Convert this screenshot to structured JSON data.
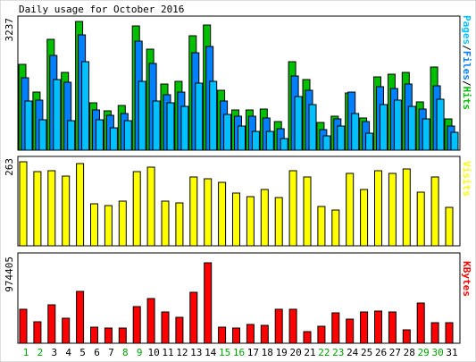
{
  "chart_data": {
    "type": "bar",
    "title": "Daily usage for October 2016",
    "categories": [
      "1",
      "2",
      "3",
      "4",
      "5",
      "6",
      "7",
      "8",
      "9",
      "10",
      "11",
      "12",
      "13",
      "14",
      "15",
      "16",
      "17",
      "18",
      "19",
      "20",
      "21",
      "22",
      "23",
      "24",
      "25",
      "26",
      "27",
      "28",
      "29",
      "30",
      "31"
    ],
    "weekend_days": [
      "1",
      "2",
      "8",
      "9",
      "15",
      "16",
      "22",
      "23",
      "29",
      "30"
    ],
    "colors": {
      "hits": "#00c000",
      "files": "#0080ff",
      "pages": "#00c0ff",
      "visits": "#ffff00",
      "kbytes": "#ff0000",
      "weekend_label": "#00a000",
      "weekday_label": "#000000",
      "frame": "#000000",
      "panel_bg": "#ffffff"
    },
    "panels": [
      {
        "id": "hits",
        "y_max_label": "3237",
        "right_label": [
          "Pages",
          "/",
          "Files",
          "/",
          "Hits"
        ],
        "right_label_colors": [
          "#00c0ff",
          "#000000",
          "#0080ff",
          "#000000",
          "#00c000"
        ],
        "ylim": [
          0,
          3237
        ],
        "series": [
          {
            "name": "Hits",
            "values": [
              2130,
              1450,
              2740,
              1930,
              3200,
              1180,
              980,
              1100,
              3080,
              2500,
              1650,
              1710,
              2830,
              3100,
              1480,
              990,
              1000,
              1030,
              700,
              2190,
              1750,
              680,
              840,
              1420,
              800,
              1820,
              1890,
              1920,
              1200,
              2070,
              770
            ]
          },
          {
            "name": "Files",
            "values": [
              1800,
              1250,
              2360,
              1690,
              2870,
              1000,
              870,
              900,
              2710,
              2160,
              1380,
              1440,
              2420,
              2580,
              1220,
              840,
              840,
              800,
              530,
              1830,
              1480,
              520,
              770,
              1450,
              710,
              1580,
              1530,
              1650,
              1030,
              1600,
              590
            ]
          },
          {
            "name": "Pages",
            "values": [
              1230,
              750,
              1750,
              740,
              2200,
              750,
              560,
              730,
              1700,
              1220,
              1180,
              1090,
              1660,
              1700,
              890,
              590,
              470,
              470,
              290,
              1340,
              1130,
              360,
              600,
              900,
              420,
              1130,
              1250,
              1090,
              770,
              1260,
              450
            ]
          }
        ]
      },
      {
        "id": "visits",
        "y_max_label": "263",
        "right_label": [
          "Visits"
        ],
        "right_label_colors": [
          "#ffff00"
        ],
        "ylim": [
          0,
          263
        ],
        "series": [
          {
            "name": "Visits",
            "values": [
              257,
              227,
              231,
              213,
              253,
              130,
              123,
              137,
              227,
              242,
              138,
              131,
              211,
              206,
              194,
              162,
              150,
              173,
              149,
              231,
              212,
              121,
              110,
              221,
              173,
              231,
              222,
              235,
              164,
              212,
              118
            ]
          }
        ]
      },
      {
        "id": "kbytes",
        "y_max_label": "974405",
        "right_label": [
          "KBytes"
        ],
        "right_label_colors": [
          "#ff0000"
        ],
        "ylim": [
          0,
          974405
        ],
        "series": [
          {
            "name": "KBytes",
            "values": [
              378000,
              245000,
              433000,
              279000,
              583000,
              180000,
              169000,
              172000,
              411000,
              499000,
              355000,
              288000,
              577000,
              900000,
              177000,
              167000,
              215000,
              203000,
              378000,
              378000,
              130000,
              194000,
              337000,
              274000,
              351000,
              363000,
              349000,
              149000,
              453000,
              236000,
              236000
            ]
          }
        ]
      }
    ]
  }
}
